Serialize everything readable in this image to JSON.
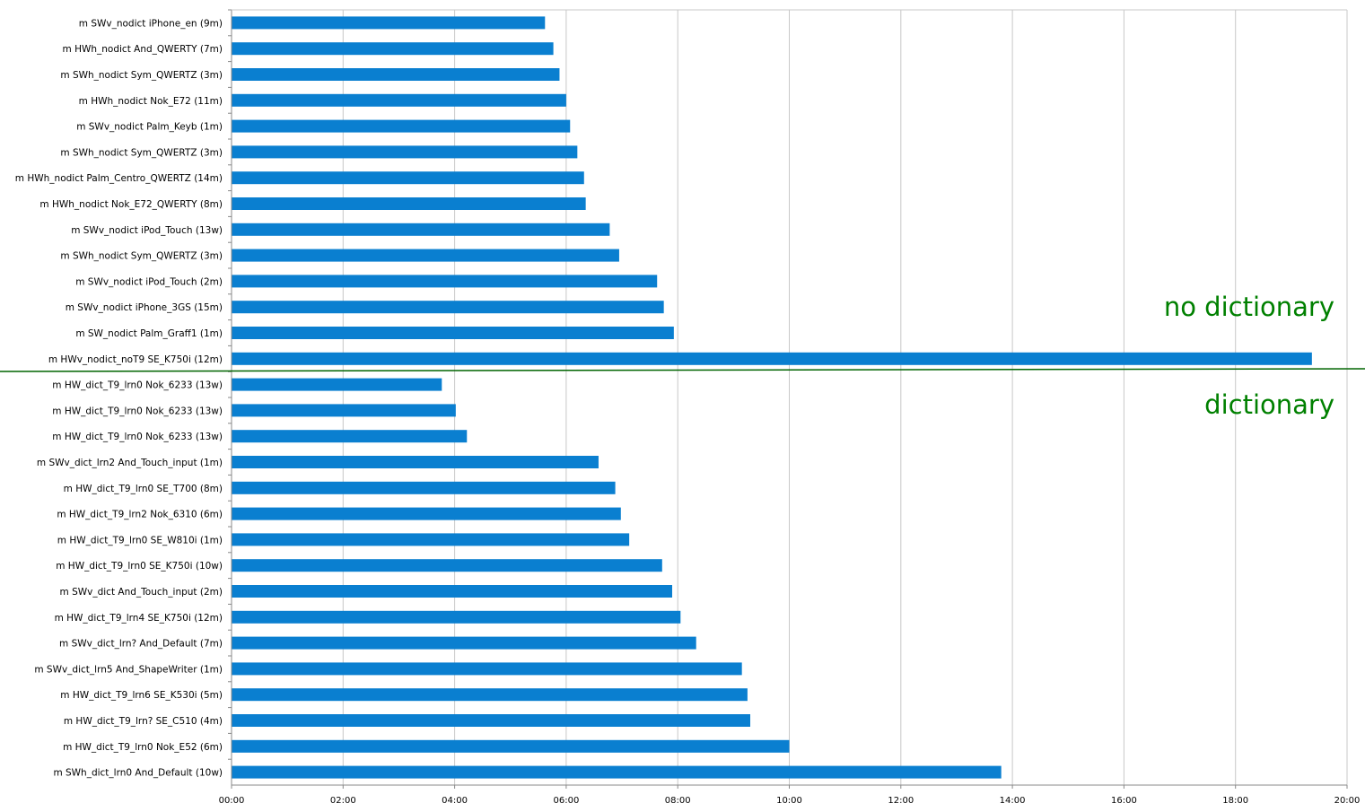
{
  "chart_data": {
    "type": "bar",
    "orientation": "horizontal",
    "title": "",
    "xlabel": "",
    "ylabel": "",
    "x_unit": "minutes",
    "xlim": [
      0,
      20
    ],
    "x_ticks": [
      0,
      2,
      4,
      6,
      8,
      10,
      12,
      14,
      16,
      18,
      20
    ],
    "x_tick_labels": [
      "00:00",
      "02:00",
      "04:00",
      "06:00",
      "08:00",
      "10:00",
      "12:00",
      "14:00",
      "16:00",
      "18:00",
      "20:00"
    ],
    "grid": "vertical",
    "legend": "none",
    "bar_color": "#0a7fd0",
    "grid_color": "#c8c8c8",
    "categories": [
      "m SWv_nodict iPhone_en (9m)",
      "m HWh_nodict And_QWERTY (7m)",
      "m SWh_nodict Sym_QWERTZ (3m)",
      "m HWh_nodict Nok_E72 (11m)",
      "m SWv_nodict Palm_Keyb (1m)",
      "m SWh_nodict Sym_QWERTZ (3m)",
      "m HWh_nodict Palm_Centro_QWERTZ (14m)",
      "m HWh_nodict Nok_E72_QWERTY (8m)",
      "m SWv_nodict iPod_Touch (13w)",
      "m SWh_nodict Sym_QWERTZ (3m)",
      "m SWv_nodict iPod_Touch (2m)",
      "m SWv_nodict iPhone_3GS (15m)",
      "m SW_nodict Palm_Graff1 (1m)",
      "m HWv_nodict_noT9 SE_K750i (12m)",
      "m HW_dict_T9_lrn0 Nok_6233 (13w)",
      "m HW_dict_T9_lrn0 Nok_6233 (13w)",
      "m HW_dict_T9_lrn0 Nok_6233 (13w)",
      "m SWv_dict_lrn2 And_Touch_input (1m)",
      "m HW_dict_T9_lrn0 SE_T700 (8m)",
      "m HW_dict_T9_lrn2 Nok_6310 (6m)",
      "m HW_dict_T9_lrn0 SE_W810i (1m)",
      "m HW_dict_T9_lrn0 SE_K750i (10w)",
      "m SWv_dict And_Touch_input (2m)",
      "m HW_dict_T9_lrn4 SE_K750i (12m)",
      "m SWv_dict_lrn? And_Default (7m)",
      "m SWv_dict_lrn5 And_ShapeWriter (1m)",
      "m HW_dict_T9_lrn6 SE_K530i (5m)",
      "m HW_dict_T9_lrn? SE_C510 (4m)",
      "m HW_dict_T9_lrn0 Nok_E52 (6m)",
      "m SWh_dict_lrn0 And_Default (10w)"
    ],
    "values": [
      5.62,
      5.77,
      5.88,
      6.0,
      6.07,
      6.2,
      6.32,
      6.35,
      6.78,
      6.95,
      7.63,
      7.75,
      7.93,
      19.37,
      3.77,
      4.02,
      4.22,
      6.58,
      6.88,
      6.98,
      7.13,
      7.72,
      7.9,
      8.05,
      8.33,
      9.15,
      9.25,
      9.3,
      10.0,
      13.8
    ],
    "annotations": [
      {
        "text": "no dictionary",
        "color": "#008000"
      },
      {
        "text": "dictionary",
        "color": "#008000"
      }
    ],
    "divider_color": "#006400"
  }
}
